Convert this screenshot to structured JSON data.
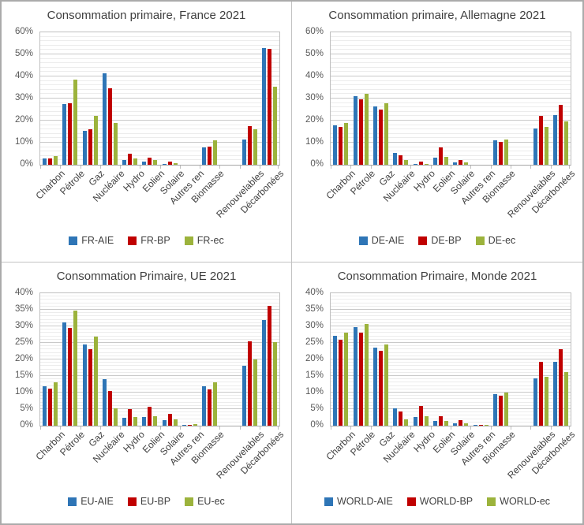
{
  "style": {
    "series_blue": "#2E75B6",
    "series_red": "#C00000",
    "series_green": "#9CB33C",
    "title_color": "#3F3F3F",
    "axis_text_color": "#595959",
    "grid_minor": "#ECECEC",
    "grid_major": "#C9C9C9",
    "plot_border": "#BFBFBF",
    "axis_line": "#A6A6A6",
    "panel_border": "#C3C3C3",
    "outer_border": "#ABABAB",
    "background": "#FFFFFF"
  },
  "chart_data": [
    {
      "type": "bar",
      "title": "Consommation primaire, France 2021",
      "ylim": [
        0,
        60
      ],
      "ytick_step": 10,
      "yminor_step": 2,
      "ytick_format": "percent",
      "grid": true,
      "legend_position": "bottom",
      "gap_after_category": "Biomasse",
      "categories": [
        "Charbon",
        "Pétrole",
        "Gaz",
        "Nucléaire",
        "Hydro",
        "Eolien",
        "Solaire",
        "Autres ren",
        "Biomasse",
        "Renouvelables",
        "Décarbonées"
      ],
      "series": [
        {
          "name": "FR-AIE",
          "color": "#2E75B6",
          "values": [
            3,
            27.5,
            15.5,
            41.5,
            2,
            1.5,
            0.5,
            0,
            7.8,
            11.5,
            53
          ]
        },
        {
          "name": "FR-BP",
          "color": "#C00000",
          "values": [
            3,
            28,
            16,
            34.5,
            5,
            3.2,
            1.3,
            0,
            8.2,
            17.5,
            52.5
          ]
        },
        {
          "name": "FR-ec",
          "color": "#9CB33C",
          "values": [
            4,
            38.5,
            22,
            19,
            3,
            2,
            0.8,
            0,
            11,
            16,
            35.5
          ]
        }
      ]
    },
    {
      "type": "bar",
      "title": "Consommation primaire, Allemagne 2021",
      "ylim": [
        0,
        60
      ],
      "ytick_step": 10,
      "yminor_step": 2,
      "ytick_format": "percent",
      "grid": true,
      "legend_position": "bottom",
      "gap_after_category": "Biomasse",
      "categories": [
        "Charbon",
        "Pétrole",
        "Gaz",
        "Nucléaire",
        "Hydro",
        "Eolien",
        "Solaire",
        "Autres ren",
        "Biomasse",
        "Renouvelables",
        "Décarbonées"
      ],
      "series": [
        {
          "name": "DE-AIE",
          "color": "#2E75B6",
          "values": [
            18,
            31,
            26.5,
            5.5,
            0.5,
            3.3,
            0.9,
            0,
            11,
            16.5,
            22.5
          ]
        },
        {
          "name": "DE-BP",
          "color": "#C00000",
          "values": [
            17,
            29.5,
            25,
            4.2,
            1.3,
            7.8,
            2.2,
            0,
            10.5,
            22.3,
            27
          ]
        },
        {
          "name": "DE-ec",
          "color": "#9CB33C",
          "values": [
            19,
            32,
            28,
            2,
            0.5,
            3.6,
            1,
            0,
            11.5,
            17,
            19.5
          ]
        }
      ]
    },
    {
      "type": "bar",
      "title": "Consommation Primaire, UE 2021",
      "ylim": [
        0,
        40
      ],
      "ytick_step": 5,
      "yminor_step": 1,
      "ytick_format": "percent",
      "grid": true,
      "legend_position": "bottom",
      "gap_after_category": "Biomasse",
      "categories": [
        "Charbon",
        "Pétrole",
        "Gaz",
        "Nucléaire",
        "Hydro",
        "Eolien",
        "Solaire",
        "Autres ren",
        "Biomasse",
        "Renouvelables",
        "Décarbonées"
      ],
      "series": [
        {
          "name": "EU-AIE",
          "color": "#2E75B6",
          "values": [
            11.8,
            31.3,
            24.5,
            14,
            2.3,
            2.5,
            1.6,
            0.3,
            11.8,
            18.2,
            32
          ]
        },
        {
          "name": "EU-BP",
          "color": "#C00000",
          "values": [
            11.2,
            29.5,
            23,
            10.5,
            5,
            5.7,
            3.6,
            0.3,
            11,
            25.5,
            36.2
          ]
        },
        {
          "name": "EU-ec",
          "color": "#9CB33C",
          "values": [
            13.2,
            34.7,
            27,
            5.2,
            2.5,
            2.9,
            1.9,
            0.5,
            13,
            20,
            25.2
          ]
        }
      ]
    },
    {
      "type": "bar",
      "title": "Consommation Primaire, Monde 2021",
      "ylim": [
        0,
        40
      ],
      "ytick_step": 5,
      "yminor_step": 1,
      "ytick_format": "percent",
      "grid": true,
      "legend_position": "bottom",
      "gap_after_category": "Biomasse",
      "categories": [
        "Charbon",
        "Pétrole",
        "Gaz",
        "Nucléaire",
        "Hydro",
        "Eolien",
        "Solaire",
        "Autres ren",
        "Biomasse",
        "Renouvelables",
        "Décarbonées"
      ],
      "series": [
        {
          "name": "WORLD-AIE",
          "color": "#2E75B6",
          "values": [
            27.2,
            29.7,
            23.6,
            5.2,
            2.7,
            1.4,
            0.8,
            0.2,
            9.6,
            14.2,
            19.2
          ]
        },
        {
          "name": "WORLD-BP",
          "color": "#C00000",
          "values": [
            26,
            28.2,
            22.6,
            4.2,
            6,
            2.8,
            1.6,
            0.3,
            9.1,
            19.4,
            23.2
          ]
        },
        {
          "name": "WORLD-ec",
          "color": "#9CB33C",
          "values": [
            28.2,
            30.8,
            24.6,
            2,
            2.8,
            1.4,
            0.7,
            0.2,
            9.9,
            14.7,
            16.3
          ]
        }
      ]
    }
  ]
}
